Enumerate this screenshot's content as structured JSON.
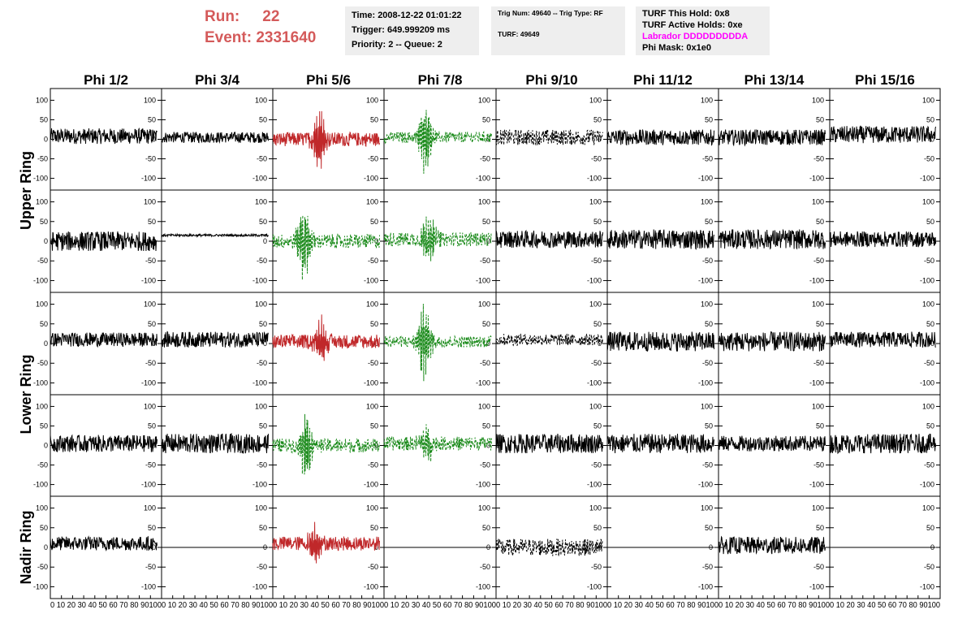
{
  "header": {
    "run_label": "Run:",
    "run_value": "22",
    "event_label": "Event:",
    "event_value": "2331640",
    "time_line": "Time: 2008-12-22 01:01:22",
    "trigger_line": "Trigger: 649.999209 ms",
    "priority_line": "Priority: 2 -- Queue: 2",
    "trig_line": "Trig Num: 49640 -- Trig Type: RF",
    "turf_line": "TURF: 49649",
    "turf_hold_line": "TURF This Hold: 0x8",
    "turf_active_line": "TURF Active Holds: 0xe",
    "labrador_line": "Labrador DDDDDDDDDA",
    "phi_mask_line": "Phi Mask: 0x1e0"
  },
  "colors": {
    "header_red": "#d45a5a",
    "labrador_magenta": "#ff00ff",
    "trace_black": "#000000",
    "trace_red": "#c0282a",
    "trace_green": "#1a8a1a"
  },
  "chart_data": {
    "type": "line",
    "columns": [
      "Phi 1/2",
      "Phi 3/4",
      "Phi 5/6",
      "Phi 7/8",
      "Phi 9/10",
      "Phi 11/12",
      "Phi 13/14",
      "Phi 15/16"
    ],
    "rows": [
      "Upper Ring",
      "Upper Ring",
      "Lower Ring",
      "Lower Ring",
      "Nadir Ring"
    ],
    "row_labels": [
      {
        "text": "Upper Ring",
        "span": [
          0,
          1
        ]
      },
      {
        "text": "Lower Ring",
        "span": [
          2,
          3
        ]
      },
      {
        "text": "Nadir Ring",
        "span": [
          4,
          4
        ]
      }
    ],
    "xlim": [
      0,
      100
    ],
    "ylim": [
      -130,
      130
    ],
    "y_ticks": [
      -100,
      -50,
      0,
      50,
      100
    ],
    "x_ticks": [
      0,
      10,
      20,
      30,
      40,
      50,
      60,
      70,
      80,
      90,
      100
    ],
    "x_tick_labels": [
      "0",
      "10",
      "20",
      "30",
      "40",
      "50",
      "60",
      "70",
      "80",
      "90",
      "100"
    ],
    "x_tick_text": "0 10 20 30 40 50 60 70 80 90100",
    "trace_x_range": [
      0,
      96
    ],
    "styles": {
      "black": {
        "color": "#000000",
        "dash": false
      },
      "red": {
        "color": "#c0282a",
        "dash": false
      },
      "green": {
        "color": "#1a8a1a",
        "dash": true
      },
      "dotted": {
        "color": "#000000",
        "dash": true
      }
    },
    "traces": [
      [
        {
          "style": "black",
          "noise": 20,
          "peak_amp": 0,
          "peak_center": 0,
          "offset": 8
        },
        {
          "style": "black",
          "noise": 14,
          "peak_amp": 0,
          "peak_center": 0,
          "offset": 5
        },
        {
          "style": "red",
          "noise": 18,
          "peak_amp": 85,
          "peak_center": 42,
          "offset": 0
        },
        {
          "style": "green",
          "noise": 14,
          "peak_amp": 95,
          "peak_center": 37,
          "offset": 5
        },
        {
          "style": "dotted",
          "noise": 20,
          "peak_amp": 0,
          "peak_center": 0,
          "offset": 5
        },
        {
          "style": "black",
          "noise": 20,
          "peak_amp": 0,
          "peak_center": 0,
          "offset": 5
        },
        {
          "style": "black",
          "noise": 20,
          "peak_amp": 0,
          "peak_center": 0,
          "offset": 5
        },
        {
          "style": "black",
          "noise": 22,
          "peak_amp": 0,
          "peak_center": 0,
          "offset": 12
        }
      ],
      [
        {
          "style": "black",
          "noise": 25,
          "peak_amp": 0,
          "peak_center": 0,
          "offset": 0
        },
        {
          "style": "black",
          "noise": 3,
          "peak_amp": 0,
          "peak_center": 0,
          "offset": 15
        },
        {
          "style": "green",
          "noise": 18,
          "peak_amp": 95,
          "peak_center": 28,
          "offset": 0
        },
        {
          "style": "green",
          "noise": 18,
          "peak_amp": 75,
          "peak_center": 40,
          "offset": 5
        },
        {
          "style": "black",
          "noise": 22,
          "peak_amp": 0,
          "peak_center": 0,
          "offset": 5
        },
        {
          "style": "black",
          "noise": 25,
          "peak_amp": 0,
          "peak_center": 0,
          "offset": 5
        },
        {
          "style": "black",
          "noise": 25,
          "peak_amp": 0,
          "peak_center": 0,
          "offset": 5
        },
        {
          "style": "black",
          "noise": 20,
          "peak_amp": 0,
          "peak_center": 0,
          "offset": 5
        }
      ],
      [
        {
          "style": "black",
          "noise": 18,
          "peak_amp": 0,
          "peak_center": 0,
          "offset": 10
        },
        {
          "style": "black",
          "noise": 20,
          "peak_amp": 0,
          "peak_center": 0,
          "offset": 10
        },
        {
          "style": "red",
          "noise": 18,
          "peak_amp": 60,
          "peak_center": 43,
          "offset": 5
        },
        {
          "style": "green",
          "noise": 15,
          "peak_amp": 105,
          "peak_center": 36,
          "offset": 5
        },
        {
          "style": "dotted",
          "noise": 15,
          "peak_amp": 0,
          "peak_center": 0,
          "offset": 10
        },
        {
          "style": "black",
          "noise": 25,
          "peak_amp": 0,
          "peak_center": 0,
          "offset": 5
        },
        {
          "style": "black",
          "noise": 25,
          "peak_amp": 0,
          "peak_center": 0,
          "offset": 5
        },
        {
          "style": "black",
          "noise": 20,
          "peak_amp": 0,
          "peak_center": 0,
          "offset": 10
        }
      ],
      [
        {
          "style": "black",
          "noise": 22,
          "peak_amp": 0,
          "peak_center": 0,
          "offset": 5
        },
        {
          "style": "black",
          "noise": 25,
          "peak_amp": 0,
          "peak_center": 0,
          "offset": 5
        },
        {
          "style": "green",
          "noise": 18,
          "peak_amp": 90,
          "peak_center": 30,
          "offset": 0
        },
        {
          "style": "green",
          "noise": 18,
          "peak_amp": 50,
          "peak_center": 38,
          "offset": 5
        },
        {
          "style": "black",
          "noise": 25,
          "peak_amp": 0,
          "peak_center": 0,
          "offset": 5
        },
        {
          "style": "black",
          "noise": 25,
          "peak_amp": 0,
          "peak_center": 0,
          "offset": 5
        },
        {
          "style": "black",
          "noise": 20,
          "peak_amp": 0,
          "peak_center": 0,
          "offset": 5
        },
        {
          "style": "black",
          "noise": 25,
          "peak_amp": 0,
          "peak_center": 0,
          "offset": 5
        }
      ],
      [
        {
          "style": "black",
          "noise": 18,
          "peak_amp": 0,
          "peak_center": 0,
          "offset": 10
        },
        {
          "style": "black",
          "noise": 0,
          "peak_amp": 0,
          "peak_center": 0,
          "offset": 0
        },
        {
          "style": "red",
          "noise": 18,
          "peak_amp": 50,
          "peak_center": 38,
          "offset": 10
        },
        {
          "style": "black",
          "noise": 0,
          "peak_amp": 0,
          "peak_center": 0,
          "offset": 0
        },
        {
          "style": "dotted",
          "noise": 22,
          "peak_amp": 0,
          "peak_center": 0,
          "offset": 0
        },
        {
          "style": "black",
          "noise": 0,
          "peak_amp": 0,
          "peak_center": 0,
          "offset": 0
        },
        {
          "style": "black",
          "noise": 22,
          "peak_amp": 0,
          "peak_center": 0,
          "offset": 5
        },
        {
          "style": "black",
          "noise": 0,
          "peak_amp": 0,
          "peak_center": 0,
          "offset": 0
        }
      ]
    ]
  }
}
